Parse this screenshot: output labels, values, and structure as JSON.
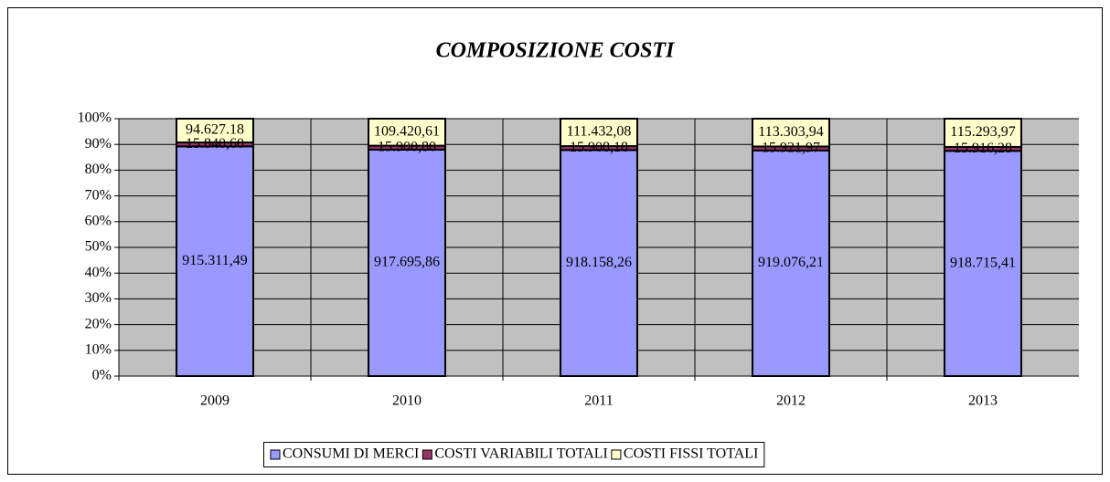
{
  "chart_data": {
    "type": "bar",
    "stacking": "percent",
    "title": "COMPOSIZIONE COSTI",
    "categories": [
      "2009",
      "2010",
      "2011",
      "2012",
      "2013"
    ],
    "series": [
      {
        "name": "CONSUMI DI MERCI",
        "color": "#9999ff",
        "values": [
          915311.49,
          917695.86,
          918158.26,
          919076.21,
          918715.41
        ],
        "value_labels": [
          "915.311,49",
          "917.695,86",
          "918.158,26",
          "919.076,21",
          "918.715,41"
        ]
      },
      {
        "name": "COSTI VARIABILI TOTALI",
        "color": "#993366",
        "values": [
          15840.6,
          15900.8,
          15908.18,
          15921.97,
          15916.28
        ],
        "value_labels": [
          "15.840,60",
          "15.900,80",
          "15.908,18",
          "15.921,97",
          "15.916,28"
        ]
      },
      {
        "name": "COSTI FISSI TOTALI",
        "color": "#ffffcc",
        "values": [
          94627.18,
          109420.61,
          111432.08,
          113303.94,
          115293.97
        ],
        "value_labels": [
          "94.627.18",
          "109.420,61",
          "111.432,08",
          "113.303,94",
          "115.293,97"
        ]
      }
    ],
    "ylim": [
      0,
      100
    ],
    "yticks": [
      {
        "value": 0,
        "label": "0%"
      },
      {
        "value": 10,
        "label": "10%"
      },
      {
        "value": 20,
        "label": "20%"
      },
      {
        "value": 30,
        "label": "30%"
      },
      {
        "value": 40,
        "label": "40%"
      },
      {
        "value": 50,
        "label": "50%"
      },
      {
        "value": 60,
        "label": "60%"
      },
      {
        "value": 70,
        "label": "70%"
      },
      {
        "value": 80,
        "label": "80%"
      },
      {
        "value": 90,
        "label": "90%"
      },
      {
        "value": 100,
        "label": "100%"
      }
    ],
    "grid": true,
    "legend": "bottom"
  }
}
